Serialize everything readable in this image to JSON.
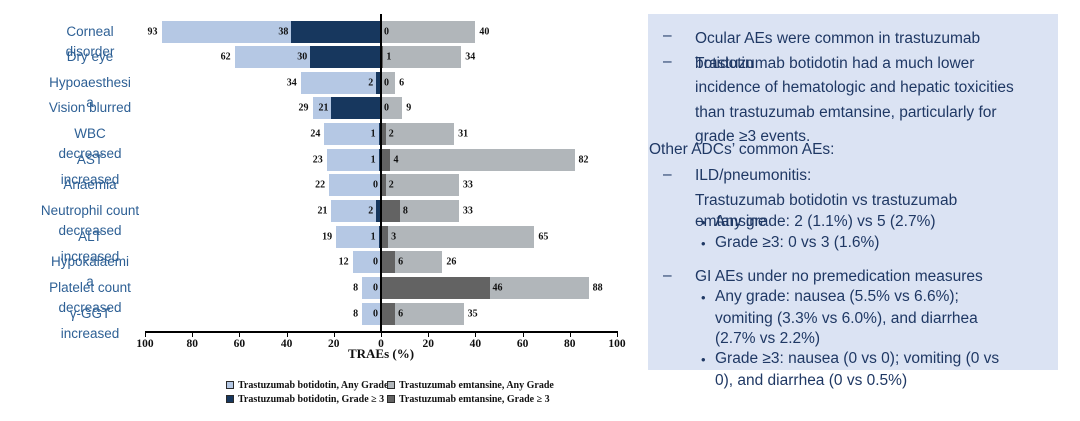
{
  "colors": {
    "botidotin_any": "#b5c8e4",
    "botidotin_g3": "#17375e",
    "emtansine_any": "#b1b6ba",
    "emtansine_g3": "#636363",
    "panel_bg": "#dbe3f3",
    "panel_text": "#1f3864",
    "category_text": "#2e6095",
    "axis": "#000000"
  },
  "chart_data": {
    "type": "bar",
    "orientation": "diverging-horizontal",
    "title": "",
    "xlabel": "TRAEs (%)",
    "x_ticks": [
      100,
      80,
      60,
      40,
      20,
      0,
      20,
      40,
      60,
      80,
      100
    ],
    "xlim": [
      -100,
      100
    ],
    "legend_position": "bottom",
    "legend": [
      {
        "label": "Trastuzumab botidotin, Any Grade",
        "color_key": "botidotin_any"
      },
      {
        "label": "Trastuzumab botidotin, Grade ≥ 3",
        "color_key": "botidotin_g3"
      },
      {
        "label": "Trastuzumab emtansine, Any Grade",
        "color_key": "emtansine_any"
      },
      {
        "label": "Trastuzumab emtansine, Grade ≥ 3",
        "color_key": "emtansine_g3"
      }
    ],
    "rows": [
      {
        "category": "Corneal disorder",
        "label_lines": [
          "Corneal",
          "disorder"
        ],
        "bot_any": 93,
        "bot_g3": 38,
        "emt_g3": 0,
        "emt_any": 40
      },
      {
        "category": "Dry eye",
        "label_lines": [
          "Dry eye"
        ],
        "bot_any": 62,
        "bot_g3": 30,
        "emt_g3": 1,
        "emt_any": 34
      },
      {
        "category": "Hypoaesthesia",
        "label_lines": [
          "Hypoaesthesi",
          "a"
        ],
        "bot_any": 34,
        "bot_g3": 2,
        "emt_g3": 0,
        "emt_any": 6
      },
      {
        "category": "Vision blurred",
        "label_lines": [
          "Vision blurred"
        ],
        "bot_any": 29,
        "bot_g3": 21,
        "emt_g3": 0,
        "emt_any": 9
      },
      {
        "category": "WBC decreased",
        "label_lines": [
          "WBC",
          "decreased"
        ],
        "bot_any": 24,
        "bot_g3": 1,
        "emt_g3": 2,
        "emt_any": 31
      },
      {
        "category": "AST increased",
        "label_lines": [
          "AST",
          "increased"
        ],
        "bot_any": 23,
        "bot_g3": 1,
        "emt_g3": 4,
        "emt_any": 82
      },
      {
        "category": "Anaemia",
        "label_lines": [
          "Anaemia"
        ],
        "bot_any": 22,
        "bot_g3": 0,
        "emt_g3": 2,
        "emt_any": 33
      },
      {
        "category": "Neutrophil count decreased",
        "label_lines": [
          "Neutrophil count",
          "decreased"
        ],
        "bot_any": 21,
        "bot_g3": 2,
        "emt_g3": 8,
        "emt_any": 33
      },
      {
        "category": "ALT increased",
        "label_lines": [
          "ALT",
          "increased"
        ],
        "bot_any": 19,
        "bot_g3": 1,
        "emt_g3": 3,
        "emt_any": 65
      },
      {
        "category": "Hypokalaemia",
        "label_lines": [
          "Hypokalaemi",
          "a"
        ],
        "bot_any": 12,
        "bot_g3": 0,
        "emt_g3": 6,
        "emt_any": 26
      },
      {
        "category": "Platelet count decreased",
        "label_lines": [
          "Platelet count",
          "decreased"
        ],
        "bot_any": 8,
        "bot_g3": 0,
        "emt_g3": 46,
        "emt_any": 88
      },
      {
        "category": "γ-GGT increased",
        "label_lines": [
          "γ-GGT",
          "increased"
        ],
        "bot_any": 8,
        "bot_g3": 0,
        "emt_g3": 6,
        "emt_any": 35
      }
    ]
  },
  "panel": {
    "items": [
      {
        "marker": "dash",
        "lines": [
          "Ocular AEs were common in trastuzumab",
          "botidotin"
        ]
      },
      {
        "marker": "dash",
        "lines": [
          "Trastuzumab botidotin had a much lower",
          "incidence of hematologic and hepatic toxicities",
          "than trastuzumab emtansine, particularly for",
          "grade ≥3 events."
        ]
      },
      {
        "marker": "none",
        "lines": [
          "Other ADCs’ common AEs:"
        ]
      },
      {
        "marker": "dash",
        "lines": [
          "ILD/pneumonitis:"
        ]
      },
      {
        "marker": "none",
        "lines": [
          "Trastuzumab botidotin vs trastuzumab",
          "emtansine"
        ]
      },
      {
        "marker": "bullet",
        "lines": [
          "Any grade: 2 (1.1%) vs 5 (2.7%)"
        ]
      },
      {
        "marker": "bullet",
        "lines": [
          "Grade ≥3: 0 vs 3 (1.6%)"
        ]
      },
      {
        "marker": "dash",
        "lines": [
          "GI AEs under no premedication measures"
        ]
      },
      {
        "marker": "bullet",
        "lines": [
          "Any grade: nausea (5.5% vs 6.6%);",
          "vomiting (3.3% vs 6.0%), and diarrhea",
          "(2.7% vs 2.2%)"
        ]
      },
      {
        "marker": "bullet",
        "lines": [
          "Grade ≥3: nausea (0 vs 0); vomiting (0 vs",
          "0), and diarrhea (0 vs 0.5%)"
        ]
      }
    ]
  }
}
